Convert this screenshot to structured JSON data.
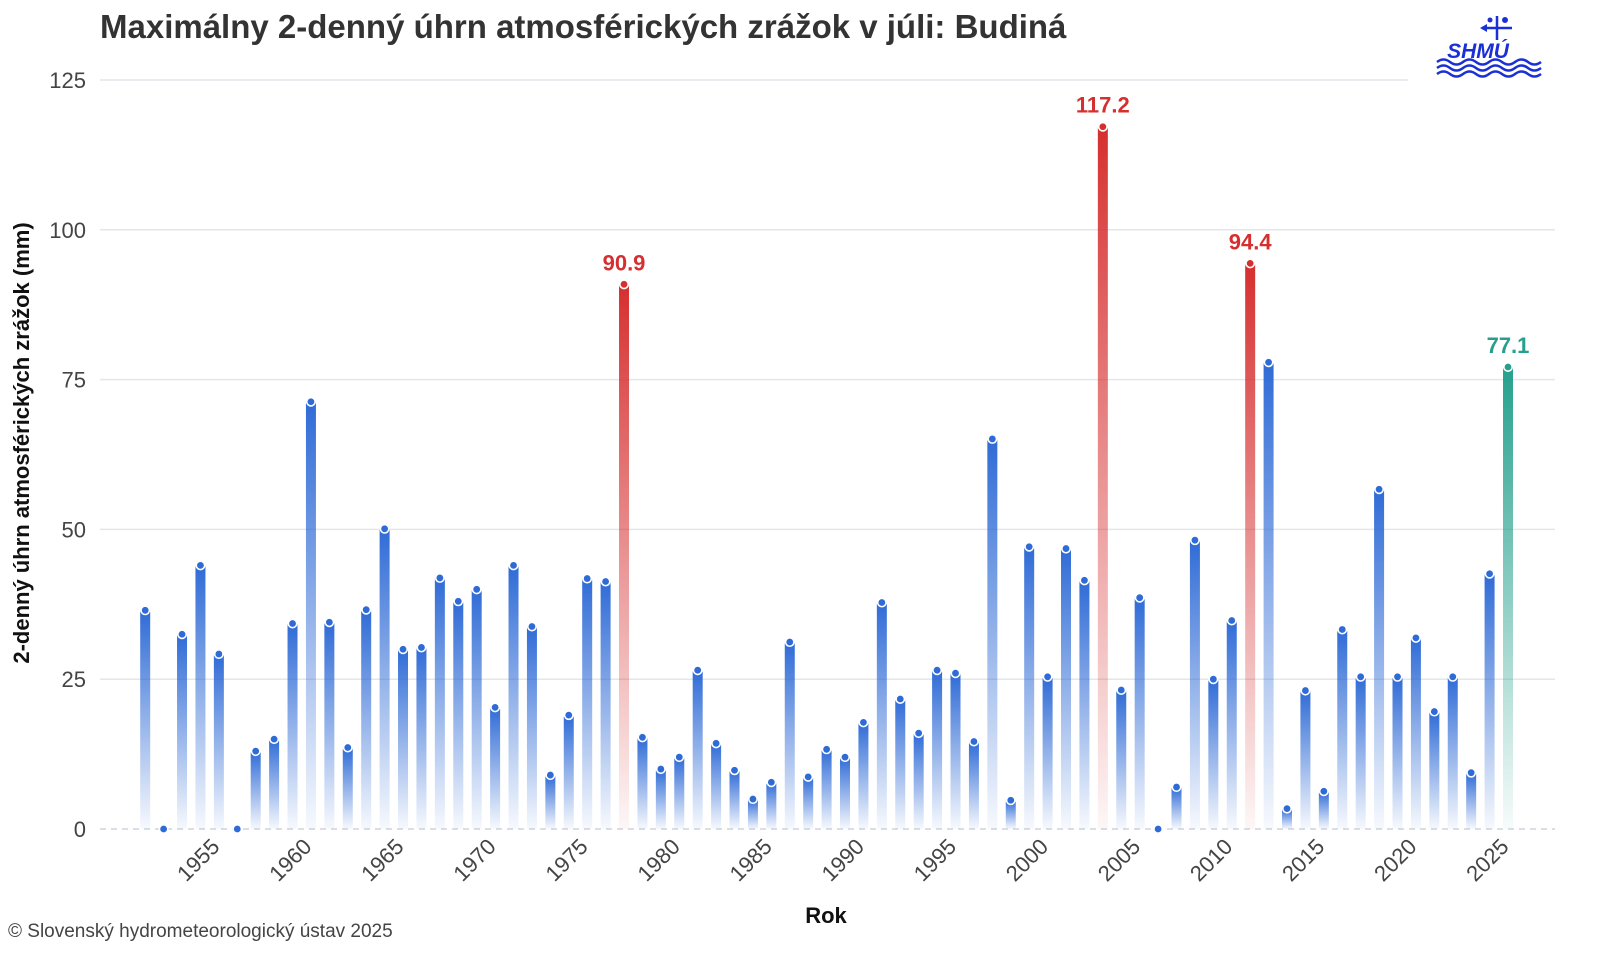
{
  "chart_data": {
    "type": "bar",
    "title": "Maximálny 2-denný úhrn atmosférických zrážok v júli: Budiná",
    "xlabel": "Rok",
    "ylabel": "2-denný úhrn atmosférických zrážok (mm)",
    "ylim": [
      0,
      125
    ],
    "yticks": [
      0,
      25,
      50,
      75,
      100,
      125
    ],
    "xlim": [
      1950,
      2026
    ],
    "xticks": [
      1955,
      1960,
      1965,
      1970,
      1975,
      1980,
      1985,
      1990,
      1995,
      2000,
      2005,
      2010,
      2015,
      2020,
      2025
    ],
    "grid": true,
    "legend": "none",
    "years": [
      1951,
      1952,
      1953,
      1954,
      1955,
      1956,
      1957,
      1958,
      1959,
      1960,
      1961,
      1962,
      1963,
      1964,
      1965,
      1966,
      1967,
      1968,
      1969,
      1970,
      1971,
      1972,
      1973,
      1974,
      1975,
      1976,
      1977,
      1978,
      1979,
      1980,
      1981,
      1982,
      1983,
      1984,
      1985,
      1986,
      1987,
      1988,
      1989,
      1990,
      1991,
      1992,
      1993,
      1994,
      1995,
      1996,
      1997,
      1998,
      1999,
      2000,
      2001,
      2002,
      2003,
      2004,
      2005,
      2006,
      2007,
      2008,
      2009,
      2010,
      2011,
      2012,
      2013,
      2014,
      2015,
      2016,
      2017,
      2018,
      2019,
      2020,
      2021,
      2022,
      2023,
      2024,
      2025
    ],
    "values": [
      36.5,
      0,
      32.5,
      44,
      29.2,
      0,
      13,
      15,
      34.3,
      71.3,
      34.5,
      13.6,
      36.6,
      50.1,
      30,
      30.3,
      41.9,
      38,
      40,
      20.3,
      44,
      33.8,
      9,
      19,
      41.8,
      41.3,
      90.9,
      15.3,
      10,
      12,
      26.5,
      14.3,
      9.8,
      5,
      7.8,
      31.2,
      8.7,
      13.3,
      12,
      17.8,
      37.8,
      21.7,
      16,
      26.5,
      26,
      14.6,
      65.1,
      4.8,
      47.1,
      25.4,
      46.8,
      41.5,
      117.2,
      23.2,
      38.6,
      0,
      7,
      48.2,
      25,
      34.8,
      94.4,
      77.9,
      3.4,
      23.1,
      6.3,
      33.3,
      25.4,
      56.7,
      25.4,
      31.9,
      19.6,
      25.4,
      9.4,
      42.6,
      77.1
    ],
    "highlights": [
      {
        "year": 1977,
        "value": 90.9,
        "label": "90.9",
        "color": "#d62f2f"
      },
      {
        "year": 2003,
        "value": 117.2,
        "label": "117.2",
        "color": "#d62f2f"
      },
      {
        "year": 2011,
        "value": 94.4,
        "label": "94.4",
        "color": "#d62f2f"
      },
      {
        "year": 2025,
        "value": 77.1,
        "label": "77.1",
        "color": "#26a08d"
      }
    ],
    "colors": {
      "normal": "#2f6bd6",
      "highlight": "#d62f2f",
      "current": "#26a08d",
      "grid": "#e3e6ea",
      "baseline": "#cfd3d8"
    }
  },
  "footer": {
    "credit": "© Slovenský hydrometeorologický ústav 2025"
  },
  "logo": {
    "text": "SHMÚ",
    "color": "#1a2fd6"
  }
}
